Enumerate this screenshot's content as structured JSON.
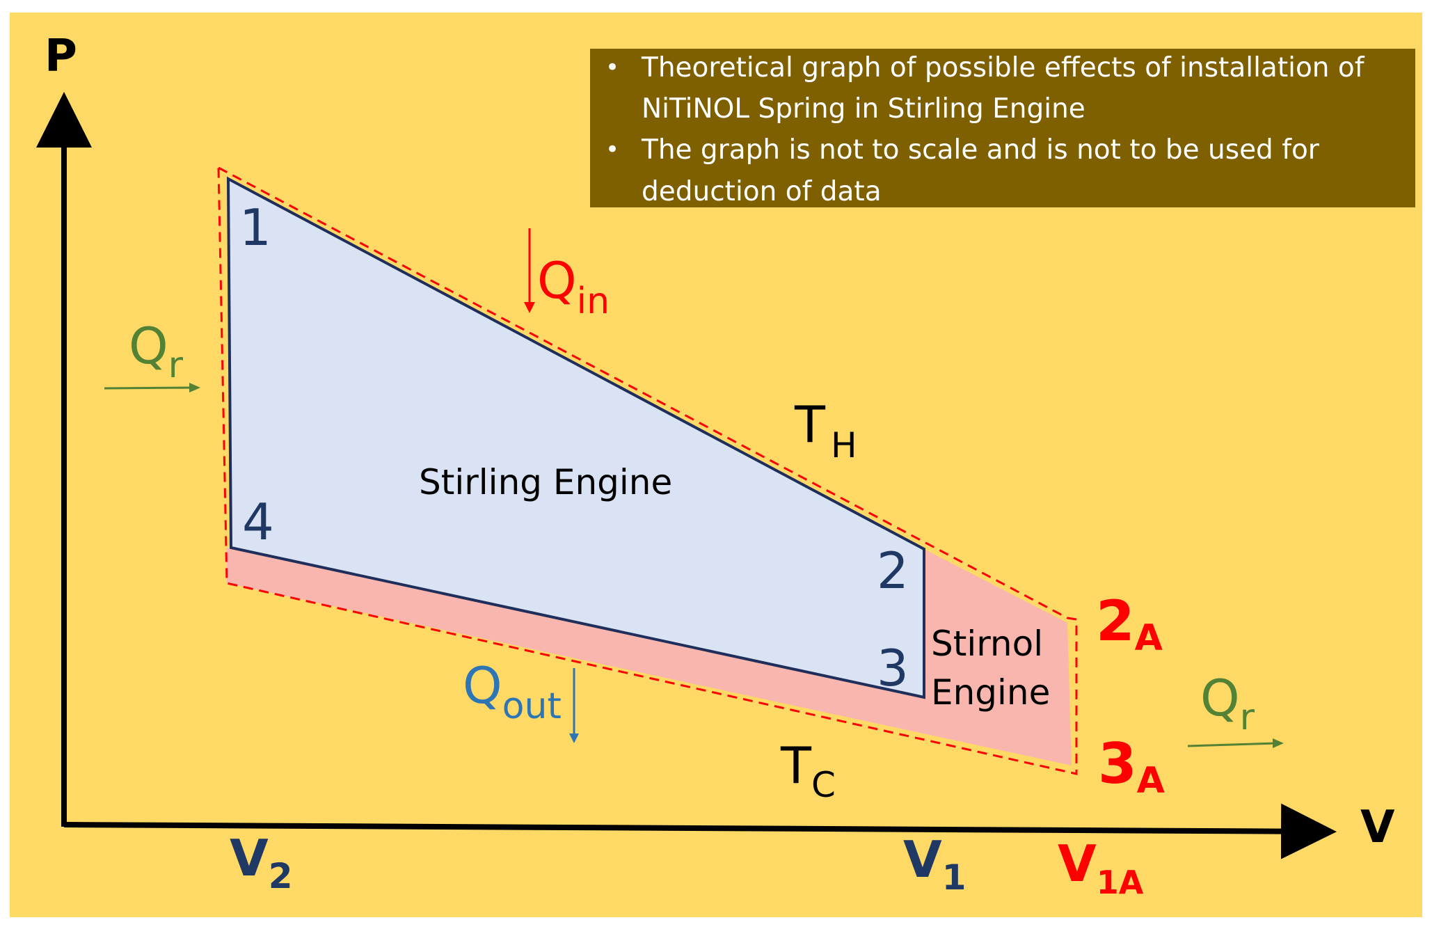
{
  "axes": {
    "y_label": "P",
    "x_label": "V"
  },
  "note": {
    "bullet": "•",
    "lines": [
      "Theoretical graph of possible effects of installation of",
      "NiTiNOL Spring in Stirling Engine",
      "The graph is not to scale and is not to be used for",
      "deduction of data"
    ]
  },
  "points": {
    "p1": "1",
    "p2": "2",
    "p3": "3",
    "p4": "4",
    "p2a": "2",
    "p3a": "3",
    "a_sub": "A"
  },
  "engines": {
    "stirling": "Stirling Engine",
    "stirnol_line1": "Stirnol",
    "stirnol_line2": "Engine"
  },
  "heat": {
    "q": "Q",
    "in_sub": "in",
    "out_sub": "out",
    "r_sub": "r"
  },
  "temps": {
    "t": "T",
    "h_sub": "H",
    "c_sub": "C"
  },
  "volumes": {
    "v": "V",
    "v2_sub": "2",
    "v1_sub": "1",
    "v1a_sub": "1A"
  },
  "colors": {
    "background": "#FFD966",
    "note_box": "#7F6000",
    "stirling_fill": "#DAE3F3",
    "stirnol_fill": "#F8B6AE",
    "cycle_line": "#1F2E5A",
    "dashed_line": "#FF0000",
    "label_blue": "#1F3864",
    "label_red": "#FF0000",
    "label_green": "#548235",
    "qout_blue": "#2E75B6"
  }
}
